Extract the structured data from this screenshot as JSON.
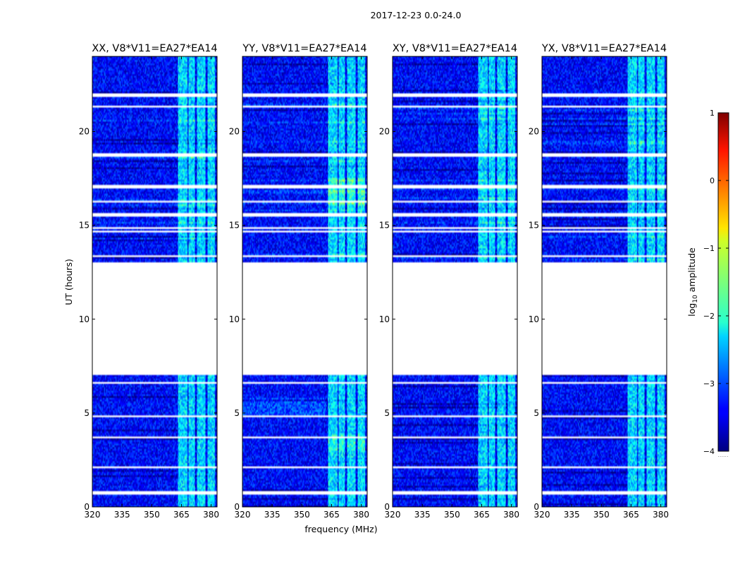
{
  "chart_data": {
    "type": "heatmap",
    "title": "2017-12-23 0.0-24.0",
    "xlabel": "frequency (MHz)",
    "ylabel": "UT (hours)",
    "xlim": [
      320,
      383
    ],
    "ylim": [
      0,
      24
    ],
    "xticks": [
      "320",
      "335",
      "350",
      "365",
      "380"
    ],
    "yticks": [
      "0",
      "5",
      "10",
      "15",
      "20"
    ],
    "panels": [
      {
        "name": "XX",
        "title": "XX, V8*V11=EA27*EA14"
      },
      {
        "name": "YY",
        "title": "YY, V8*V11=EA27*EA14"
      },
      {
        "name": "XY",
        "title": "XY, V8*V11=EA27*EA14"
      },
      {
        "name": "YX",
        "title": "YX, V8*V11=EA27*EA14"
      }
    ],
    "colorbar": {
      "label": "log10 amplitude",
      "label_main": "log",
      "label_sub": "10",
      "label_rest": " amplitude",
      "range": [
        -4,
        1
      ],
      "ticks": [
        "1",
        "0",
        "−1",
        "−2",
        "−3",
        "−4"
      ],
      "colormap": "jet",
      "dots": "......"
    },
    "data_gap_hours": [
      7.0,
      13.0
    ],
    "white_flag_rows_hours": [
      0.75,
      2.1,
      3.7,
      4.85,
      6.6,
      13.35,
      14.65,
      14.85,
      15.55,
      16.25,
      17.05,
      18.75,
      21.35,
      21.95
    ],
    "rfi_bands_mhz": [
      [
        363,
        368
      ],
      [
        368.5,
        372
      ],
      [
        373,
        377
      ],
      [
        378,
        382
      ]
    ]
  }
}
